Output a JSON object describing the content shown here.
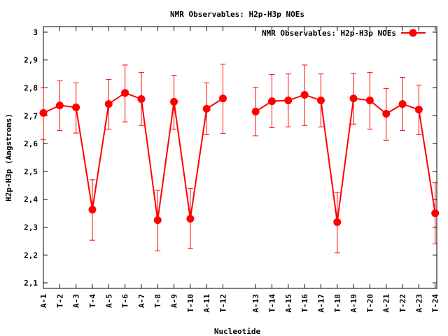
{
  "chart_data": {
    "type": "line",
    "title": "NMR Observables: H2p-H3p NOEs",
    "xlabel": "Nucleotide",
    "ylabel": "H2p-H3p (Angstroms)",
    "ylim": [
      2.08,
      3.02
    ],
    "yticks": [
      2.1,
      2.2,
      2.3,
      2.4,
      2.5,
      2.6,
      2.7,
      2.8,
      2.9,
      3.0
    ],
    "ytick_labels": [
      "2,1",
      "2,2",
      "2,3",
      "2,4",
      "2,5",
      "2,6",
      "2,7",
      "2,8",
      "2,9",
      "3"
    ],
    "xlim": [
      1,
      25.1
    ],
    "grid": false,
    "legend_position": "top-right",
    "series": [
      {
        "name": "NMR Observables: H2p-H3p NOEs",
        "color": "#ff0000",
        "segments": [
          {
            "labels": [
              "A-1",
              "T-2",
              "A-3",
              "T-4",
              "A-5",
              "T-6",
              "A-7",
              "T-8",
              "A-9",
              "T-10",
              "A-11",
              "T-12"
            ],
            "x": [
              1,
              2,
              3,
              4,
              5,
              6,
              7,
              8,
              9,
              10,
              11,
              12
            ],
            "values": [
              2.71,
              2.737,
              2.73,
              2.363,
              2.742,
              2.782,
              2.76,
              2.325,
              2.75,
              2.33,
              2.725,
              2.762
            ],
            "err_low": [
              2.615,
              2.647,
              2.638,
              2.253,
              2.652,
              2.678,
              2.665,
              2.215,
              2.652,
              2.222,
              2.632,
              2.637
            ],
            "err_high": [
              2.8,
              2.825,
              2.818,
              2.47,
              2.83,
              2.882,
              2.855,
              2.432,
              2.845,
              2.438,
              2.818,
              2.885
            ]
          },
          {
            "labels": [
              "A-13",
              "T-14",
              "A-15",
              "T-16",
              "A-17",
              "T-18",
              "A-19",
              "T-20",
              "A-21",
              "T-22",
              "A-23",
              "T-24"
            ],
            "x": [
              14,
              15,
              16,
              17,
              18,
              19,
              20,
              21,
              22,
              23,
              24,
              25
            ],
            "values": [
              2.715,
              2.752,
              2.755,
              2.775,
              2.755,
              2.318,
              2.762,
              2.755,
              2.707,
              2.742,
              2.722,
              2.35
            ],
            "err_low": [
              2.628,
              2.657,
              2.66,
              2.665,
              2.66,
              2.208,
              2.67,
              2.652,
              2.612,
              2.647,
              2.632,
              2.24
            ],
            "err_high": [
              2.802,
              2.848,
              2.85,
              2.882,
              2.85,
              2.425,
              2.852,
              2.855,
              2.798,
              2.838,
              2.81,
              2.46
            ]
          }
        ]
      }
    ]
  }
}
